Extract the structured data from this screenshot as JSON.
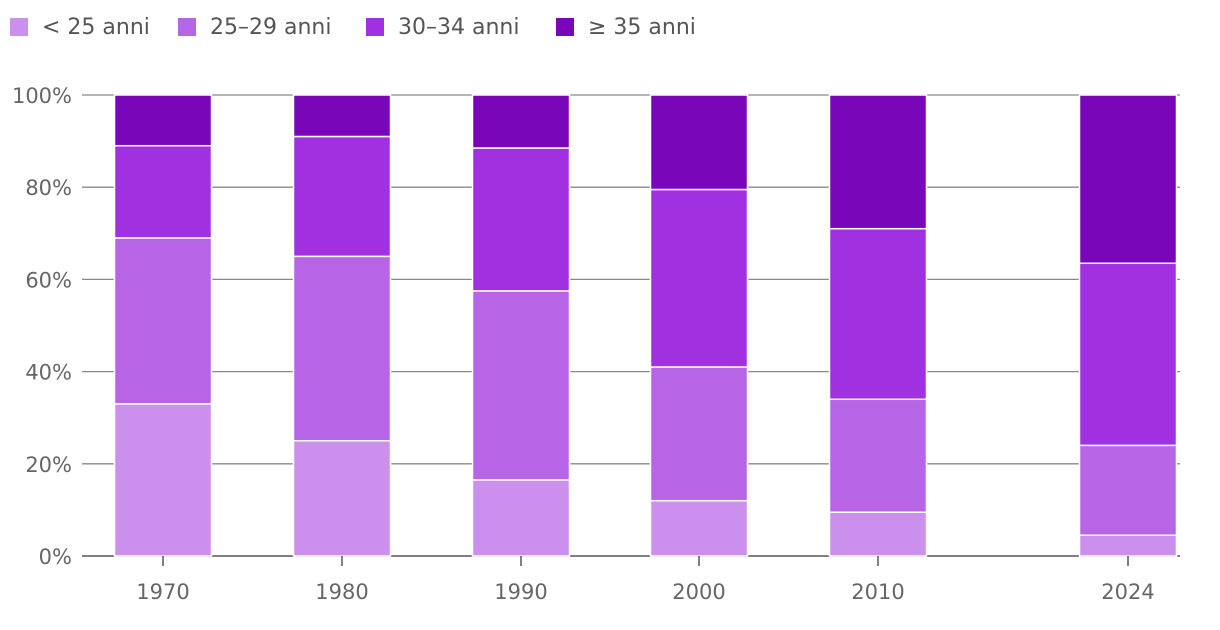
{
  "chart_data": {
    "type": "bar",
    "stacked": true,
    "categories": [
      "1970",
      "1980",
      "1990",
      "2000",
      "2010",
      "2024"
    ],
    "series": [
      {
        "name": "< 25 anni",
        "color": "#cb8fed",
        "values": [
          33,
          25,
          16.5,
          12,
          9.5,
          4.5
        ]
      },
      {
        "name": "25–29 anni",
        "color": "#b765e6",
        "values": [
          36,
          40,
          41,
          29,
          24.5,
          19.5
        ]
      },
      {
        "name": "30–34 anni",
        "color": "#a030e0",
        "values": [
          20,
          26,
          31,
          38.5,
          37,
          39.5
        ]
      },
      {
        "name": "≥ 35 anni",
        "color": "#7906b9",
        "values": [
          11,
          9,
          11.5,
          20.5,
          29,
          36.5
        ]
      }
    ],
    "yticks": [
      "0%",
      "20%",
      "40%",
      "60%",
      "80%",
      "100%"
    ],
    "ylim": [
      0,
      100
    ],
    "grid": true,
    "legend_position": "top-left"
  }
}
